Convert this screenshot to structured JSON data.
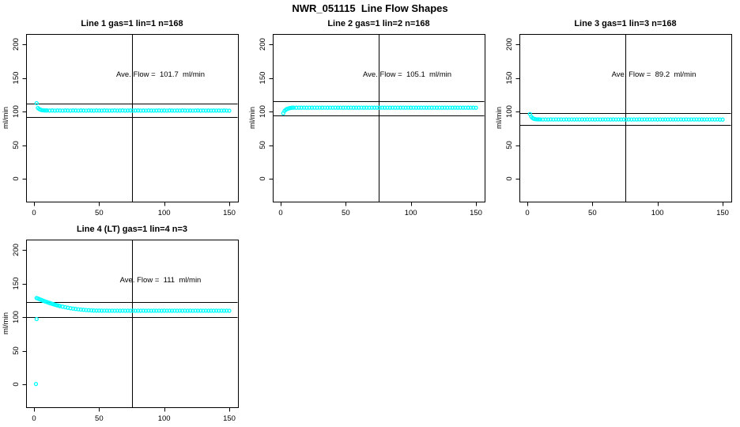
{
  "page_title": "NWR_051115  Line Flow Shapes",
  "colors": {
    "point_color": "#00ffff",
    "axis_color": "#000000",
    "background": "#ffffff",
    "text_color": "#000000"
  },
  "axes": {
    "x_ticks": [
      0,
      50,
      100,
      150
    ],
    "y_ticks": [
      0,
      50,
      100,
      150,
      200
    ],
    "ylabel": "ml/min",
    "xlabel": "",
    "xlim": [
      0,
      155
    ],
    "ylim": [
      0,
      200
    ],
    "grid": false
  },
  "chart_data": [
    {
      "type": "scatter",
      "title": "Line 1 gas=1 lin=1 n=168",
      "ave_flow": 101.7,
      "ave_flow_units": "ml/min",
      "annotation": "Ave. Flow =  101.7  ml/min",
      "ref_lines_y": [
        111.9,
        91.5
      ],
      "vline_x": 75,
      "marker": "open-circle",
      "points": [
        [
          2,
          112.3
        ],
        [
          3,
          105.2
        ],
        [
          4,
          103.6
        ],
        [
          5,
          102.6
        ],
        [
          6,
          102.0
        ],
        [
          7,
          101.8
        ],
        [
          8,
          101.6
        ],
        [
          9,
          101.5
        ],
        [
          10,
          101.5
        ],
        [
          12,
          101.4
        ],
        [
          14,
          101.5
        ],
        [
          16,
          101.3
        ],
        [
          18,
          101.5
        ],
        [
          20,
          101.4
        ],
        [
          22,
          101.3
        ],
        [
          24,
          101.5
        ],
        [
          26,
          101.4
        ],
        [
          28,
          101.3
        ],
        [
          30,
          101.5
        ],
        [
          32,
          101.4
        ],
        [
          34,
          101.3
        ],
        [
          36,
          101.5
        ],
        [
          38,
          101.4
        ],
        [
          40,
          101.3
        ],
        [
          42,
          101.5
        ],
        [
          44,
          101.4
        ],
        [
          46,
          101.3
        ],
        [
          48,
          101.5
        ],
        [
          50,
          101.4
        ],
        [
          52,
          101.3
        ],
        [
          54,
          101.5
        ],
        [
          56,
          101.4
        ],
        [
          58,
          101.3
        ],
        [
          60,
          101.4
        ],
        [
          62,
          101.5
        ],
        [
          64,
          101.3
        ],
        [
          66,
          101.4
        ],
        [
          68,
          101.5
        ],
        [
          70,
          101.3
        ],
        [
          72,
          101.4
        ],
        [
          74,
          101.5
        ],
        [
          76,
          101.3
        ],
        [
          78,
          101.4
        ],
        [
          80,
          101.5
        ],
        [
          82,
          101.3
        ],
        [
          84,
          101.4
        ],
        [
          86,
          101.3
        ],
        [
          88,
          101.5
        ],
        [
          90,
          101.4
        ],
        [
          92,
          101.3
        ],
        [
          94,
          101.4
        ],
        [
          96,
          101.5
        ],
        [
          98,
          101.3
        ],
        [
          100,
          101.4
        ],
        [
          102,
          101.3
        ],
        [
          104,
          101.5
        ],
        [
          106,
          101.4
        ],
        [
          108,
          101.3
        ],
        [
          110,
          101.4
        ],
        [
          112,
          101.3
        ],
        [
          114,
          101.5
        ],
        [
          116,
          101.4
        ],
        [
          118,
          101.3
        ],
        [
          120,
          101.4
        ],
        [
          122,
          101.3
        ],
        [
          124,
          101.4
        ],
        [
          126,
          101.5
        ],
        [
          128,
          101.3
        ],
        [
          130,
          101.4
        ],
        [
          132,
          101.3
        ],
        [
          134,
          101.4
        ],
        [
          136,
          101.3
        ],
        [
          138,
          101.4
        ],
        [
          140,
          101.3
        ],
        [
          142,
          101.4
        ],
        [
          144,
          101.3
        ],
        [
          146,
          101.4
        ],
        [
          148,
          101.3
        ],
        [
          150,
          101.2
        ]
      ]
    },
    {
      "type": "scatter",
      "title": "Line 2 gas=1 lin=2 n=168",
      "ave_flow": 105.1,
      "ave_flow_units": "ml/min",
      "annotation": "Ave. Flow =  105.1  ml/min",
      "ref_lines_y": [
        115.6,
        94.6
      ],
      "vline_x": 75,
      "marker": "open-circle",
      "points": [
        [
          2,
          97.3
        ],
        [
          3,
          100.8
        ],
        [
          4,
          102.7
        ],
        [
          5,
          103.9
        ],
        [
          6,
          104.6
        ],
        [
          7,
          105.1
        ],
        [
          8,
          105.4
        ],
        [
          9,
          105.6
        ],
        [
          10,
          105.8
        ],
        [
          12,
          105.7
        ],
        [
          14,
          105.8
        ],
        [
          16,
          105.7
        ],
        [
          18,
          105.8
        ],
        [
          20,
          105.7
        ],
        [
          22,
          105.8
        ],
        [
          24,
          105.7
        ],
        [
          26,
          105.8
        ],
        [
          28,
          105.7
        ],
        [
          30,
          105.8
        ],
        [
          32,
          105.7
        ],
        [
          34,
          105.8
        ],
        [
          36,
          105.7
        ],
        [
          38,
          105.8
        ],
        [
          40,
          105.7
        ],
        [
          42,
          105.8
        ],
        [
          44,
          105.7
        ],
        [
          46,
          105.8
        ],
        [
          48,
          105.7
        ],
        [
          50,
          105.8
        ],
        [
          52,
          105.7
        ],
        [
          54,
          105.8
        ],
        [
          56,
          105.7
        ],
        [
          58,
          105.8
        ],
        [
          60,
          105.7
        ],
        [
          62,
          105.8
        ],
        [
          64,
          105.7
        ],
        [
          66,
          105.8
        ],
        [
          68,
          105.7
        ],
        [
          70,
          105.8
        ],
        [
          72,
          105.7
        ],
        [
          74,
          105.8
        ],
        [
          76,
          105.7
        ],
        [
          78,
          105.8
        ],
        [
          80,
          105.7
        ],
        [
          82,
          105.8
        ],
        [
          84,
          105.7
        ],
        [
          86,
          105.8
        ],
        [
          88,
          105.7
        ],
        [
          90,
          105.8
        ],
        [
          92,
          105.7
        ],
        [
          94,
          105.8
        ],
        [
          96,
          105.7
        ],
        [
          98,
          105.8
        ],
        [
          100,
          105.7
        ],
        [
          102,
          105.8
        ],
        [
          104,
          105.7
        ],
        [
          106,
          105.8
        ],
        [
          108,
          105.7
        ],
        [
          110,
          105.8
        ],
        [
          112,
          105.7
        ],
        [
          114,
          105.8
        ],
        [
          116,
          105.7
        ],
        [
          118,
          105.8
        ],
        [
          120,
          105.7
        ],
        [
          122,
          105.8
        ],
        [
          124,
          105.7
        ],
        [
          126,
          105.8
        ],
        [
          128,
          105.7
        ],
        [
          130,
          105.8
        ],
        [
          132,
          105.7
        ],
        [
          134,
          105.8
        ],
        [
          136,
          105.7
        ],
        [
          138,
          105.8
        ],
        [
          140,
          105.7
        ],
        [
          142,
          105.8
        ],
        [
          144,
          105.7
        ],
        [
          146,
          105.8
        ],
        [
          148,
          105.6
        ],
        [
          150,
          105.5
        ]
      ]
    },
    {
      "type": "scatter",
      "title": "Line 3 gas=1 lin=3 n=168",
      "ave_flow": 89.2,
      "ave_flow_units": "ml/min",
      "annotation": "Ave. Flow =  89.2  ml/min",
      "ref_lines_y": [
        98.1,
        80.3
      ],
      "vline_x": 75,
      "marker": "open-circle",
      "points": [
        [
          2,
          96.1
        ],
        [
          3,
          92.4
        ],
        [
          4,
          90.3
        ],
        [
          5,
          89.2
        ],
        [
          6,
          88.7
        ],
        [
          7,
          88.4
        ],
        [
          8,
          88.3
        ],
        [
          9,
          88.2
        ],
        [
          10,
          88.2
        ],
        [
          12,
          88.1
        ],
        [
          14,
          88.2
        ],
        [
          16,
          88.1
        ],
        [
          18,
          88.2
        ],
        [
          20,
          88.1
        ],
        [
          22,
          88.2
        ],
        [
          24,
          88.1
        ],
        [
          26,
          88.2
        ],
        [
          28,
          88.1
        ],
        [
          30,
          88.2
        ],
        [
          32,
          88.1
        ],
        [
          34,
          88.2
        ],
        [
          36,
          88.1
        ],
        [
          38,
          88.2
        ],
        [
          40,
          88.1
        ],
        [
          42,
          88.2
        ],
        [
          44,
          88.1
        ],
        [
          46,
          88.2
        ],
        [
          48,
          88.1
        ],
        [
          50,
          88.2
        ],
        [
          52,
          88.1
        ],
        [
          54,
          88.2
        ],
        [
          56,
          88.1
        ],
        [
          58,
          88.2
        ],
        [
          60,
          88.1
        ],
        [
          62,
          88.2
        ],
        [
          64,
          88.1
        ],
        [
          66,
          88.2
        ],
        [
          68,
          88.1
        ],
        [
          70,
          88.2
        ],
        [
          72,
          88.1
        ],
        [
          74,
          88.2
        ],
        [
          76,
          88.1
        ],
        [
          78,
          88.2
        ],
        [
          80,
          88.1
        ],
        [
          82,
          88.2
        ],
        [
          84,
          88.1
        ],
        [
          86,
          88.2
        ],
        [
          88,
          88.1
        ],
        [
          90,
          88.2
        ],
        [
          92,
          88.1
        ],
        [
          94,
          88.2
        ],
        [
          96,
          88.1
        ],
        [
          98,
          88.2
        ],
        [
          100,
          88.1
        ],
        [
          102,
          88.2
        ],
        [
          104,
          88.1
        ],
        [
          106,
          88.2
        ],
        [
          108,
          88.1
        ],
        [
          110,
          88.2
        ],
        [
          112,
          88.1
        ],
        [
          114,
          88.2
        ],
        [
          116,
          88.1
        ],
        [
          118,
          88.2
        ],
        [
          120,
          88.1
        ],
        [
          122,
          88.2
        ],
        [
          124,
          88.1
        ],
        [
          126,
          88.2
        ],
        [
          128,
          88.1
        ],
        [
          130,
          88.2
        ],
        [
          132,
          88.1
        ],
        [
          134,
          88.2
        ],
        [
          136,
          88.1
        ],
        [
          138,
          88.2
        ],
        [
          140,
          88.1
        ],
        [
          142,
          88.2
        ],
        [
          144,
          88.1
        ],
        [
          146,
          88.2
        ],
        [
          148,
          88.0
        ],
        [
          150,
          88.0
        ]
      ]
    },
    {
      "type": "scatter",
      "title": "Line 4 (LT) gas=1 lin=4 n=3",
      "ave_flow": 111,
      "ave_flow_units": "ml/min",
      "annotation": "Ave. Flow =  111  ml/min",
      "ref_lines_y": [
        122.1,
        99.9
      ],
      "vline_x": 75,
      "marker": "open-circle",
      "points": [
        [
          1.5,
          0.5
        ],
        [
          2,
          97.0
        ],
        [
          2,
          128.3
        ],
        [
          3,
          127.6
        ],
        [
          4,
          126.8
        ],
        [
          5,
          126.0
        ],
        [
          6,
          125.2
        ],
        [
          7,
          124.4
        ],
        [
          8,
          123.7
        ],
        [
          9,
          123.0
        ],
        [
          10,
          122.3
        ],
        [
          11,
          121.6
        ],
        [
          12,
          120.9
        ],
        [
          13,
          120.3
        ],
        [
          14,
          119.7
        ],
        [
          15,
          119.1
        ],
        [
          16,
          118.5
        ],
        [
          17,
          117.9
        ],
        [
          18,
          117.4
        ],
        [
          19,
          116.9
        ],
        [
          20,
          116.4
        ],
        [
          22,
          115.5
        ],
        [
          24,
          114.7
        ],
        [
          26,
          113.9
        ],
        [
          28,
          113.2
        ],
        [
          30,
          112.6
        ],
        [
          32,
          112.1
        ],
        [
          34,
          111.6
        ],
        [
          36,
          111.2
        ],
        [
          38,
          110.8
        ],
        [
          40,
          110.5
        ],
        [
          42,
          110.2
        ],
        [
          44,
          110.0
        ],
        [
          46,
          109.8
        ],
        [
          48,
          109.7
        ],
        [
          50,
          109.6
        ],
        [
          52,
          109.5
        ],
        [
          54,
          109.5
        ],
        [
          56,
          109.5
        ],
        [
          58,
          109.4
        ],
        [
          60,
          109.5
        ],
        [
          62,
          109.4
        ],
        [
          64,
          109.5
        ],
        [
          66,
          109.4
        ],
        [
          68,
          109.5
        ],
        [
          70,
          109.4
        ],
        [
          72,
          109.5
        ],
        [
          74,
          109.4
        ],
        [
          76,
          109.5
        ],
        [
          78,
          109.4
        ],
        [
          80,
          109.5
        ],
        [
          82,
          109.4
        ],
        [
          84,
          109.5
        ],
        [
          86,
          109.4
        ],
        [
          88,
          109.5
        ],
        [
          90,
          109.4
        ],
        [
          92,
          109.5
        ],
        [
          94,
          109.4
        ],
        [
          96,
          109.5
        ],
        [
          98,
          109.4
        ],
        [
          100,
          109.5
        ],
        [
          102,
          109.4
        ],
        [
          104,
          109.5
        ],
        [
          106,
          109.4
        ],
        [
          108,
          109.5
        ],
        [
          110,
          109.4
        ],
        [
          112,
          109.5
        ],
        [
          114,
          109.4
        ],
        [
          116,
          109.5
        ],
        [
          118,
          109.4
        ],
        [
          120,
          109.5
        ],
        [
          122,
          109.4
        ],
        [
          124,
          109.5
        ],
        [
          126,
          109.4
        ],
        [
          128,
          109.5
        ],
        [
          130,
          109.4
        ],
        [
          132,
          109.5
        ],
        [
          134,
          109.4
        ],
        [
          136,
          109.5
        ],
        [
          138,
          109.4
        ],
        [
          140,
          109.5
        ],
        [
          142,
          109.4
        ],
        [
          144,
          109.5
        ],
        [
          146,
          109.4
        ],
        [
          148,
          109.5
        ],
        [
          150,
          109.4
        ]
      ]
    }
  ]
}
